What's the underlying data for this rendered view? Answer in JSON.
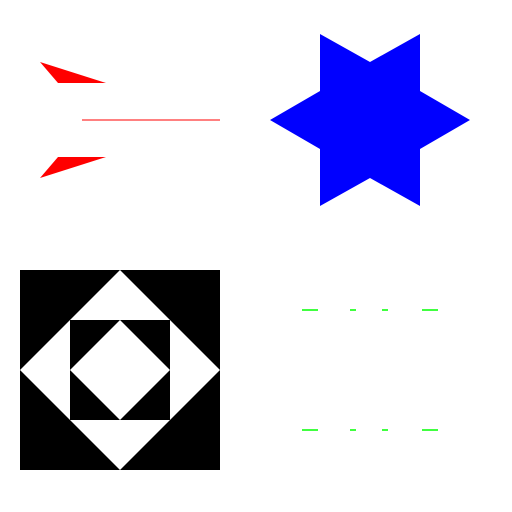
{
  "canvas": {
    "background": "#ffffff"
  },
  "shapes": {
    "arrow_glyph": {
      "description_name": "red-arrow-glyph",
      "color": "#ff0000"
    },
    "star": {
      "description_name": "six-pointed-star",
      "color": "#0000ff"
    },
    "square_pattern": {
      "description_name": "nested-diamond-square",
      "foreground": "#000000",
      "background": "#ffffff"
    },
    "dashes": {
      "description_name": "green-dash-rows",
      "color": "#00ff00"
    }
  }
}
